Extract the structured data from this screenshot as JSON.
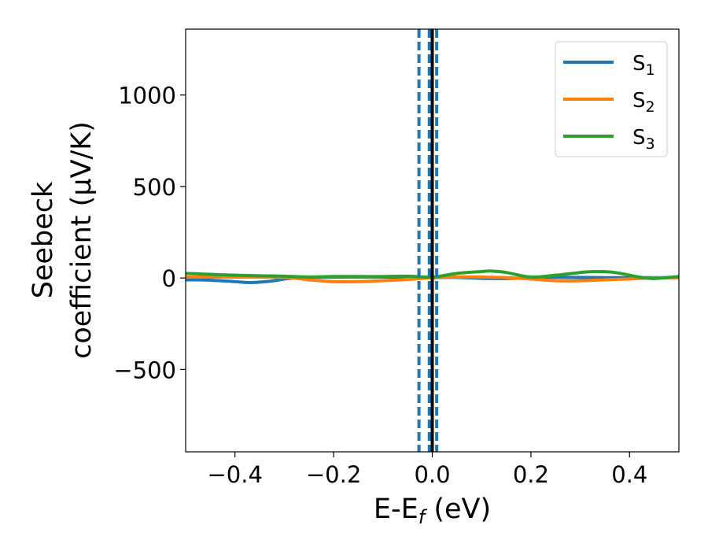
{
  "chart_data": {
    "type": "line",
    "title": "",
    "xlabel": "E-E_f (eV)",
    "xlabel_parts": {
      "base": "E-E",
      "sub": "f",
      "tail": " (eV)"
    },
    "ylabel_line1": "Seebeck",
    "ylabel_line2": "coefficient  (μV/K)",
    "xlim": [
      -0.5,
      0.5
    ],
    "ylim": [
      -950,
      1360
    ],
    "xticks": [
      -0.4,
      -0.2,
      0.0,
      0.2,
      0.4
    ],
    "xtick_labels": [
      "−0.4",
      "−0.2",
      "0.0",
      "0.2",
      "0.4"
    ],
    "yticks": [
      -500,
      0,
      500,
      1000
    ],
    "ytick_labels": [
      "−500",
      "0",
      "500",
      "1000"
    ],
    "grid": false,
    "legend_position": "top-right",
    "series": [
      {
        "name": "S_1",
        "label_base": "S",
        "label_sub": "1",
        "color": "#1f77b4",
        "x": [
          -0.5,
          -0.45,
          -0.4,
          -0.37,
          -0.33,
          -0.28,
          -0.2,
          -0.1,
          0.0,
          0.05,
          0.1,
          0.15,
          0.2,
          0.25,
          0.3,
          0.35,
          0.4,
          0.45,
          0.5
        ],
        "y": [
          -10,
          -12,
          -20,
          -25,
          -18,
          0,
          5,
          5,
          2,
          3,
          -2,
          -3,
          2,
          4,
          3,
          2,
          2,
          2,
          2
        ]
      },
      {
        "name": "S_2",
        "label_base": "S",
        "label_sub": "2",
        "color": "#ff7f0e",
        "x": [
          -0.5,
          -0.4,
          -0.3,
          -0.25,
          -0.2,
          -0.15,
          -0.1,
          -0.05,
          0.0,
          0.05,
          0.1,
          0.15,
          0.2,
          0.25,
          0.3,
          0.35,
          0.4,
          0.45,
          0.5
        ],
        "y": [
          5,
          5,
          3,
          -10,
          -20,
          -20,
          -15,
          -8,
          2,
          5,
          5,
          2,
          -5,
          -15,
          -15,
          -10,
          -5,
          0,
          2
        ]
      },
      {
        "name": "S_3",
        "label_base": "S",
        "label_sub": "3",
        "color": "#2ca02c",
        "x": [
          -0.5,
          -0.45,
          -0.4,
          -0.35,
          -0.3,
          -0.25,
          -0.2,
          -0.15,
          -0.1,
          -0.05,
          0.0,
          0.05,
          0.1,
          0.12,
          0.15,
          0.2,
          0.25,
          0.3,
          0.33,
          0.37,
          0.42,
          0.45,
          0.5
        ],
        "y": [
          25,
          20,
          15,
          12,
          10,
          5,
          8,
          8,
          8,
          10,
          5,
          25,
          35,
          38,
          30,
          5,
          15,
          30,
          35,
          30,
          5,
          -3,
          8
        ]
      }
    ],
    "vertical_lines": [
      {
        "x": -0.027,
        "style": "dashed",
        "color": "#1f77b4"
      },
      {
        "x": -0.006,
        "style": "dashed",
        "color": "#1f77b4"
      },
      {
        "x": 0.009,
        "style": "dashed",
        "color": "#1f77b4"
      },
      {
        "x": 0.0,
        "style": "solid",
        "color": "#000000"
      }
    ]
  }
}
